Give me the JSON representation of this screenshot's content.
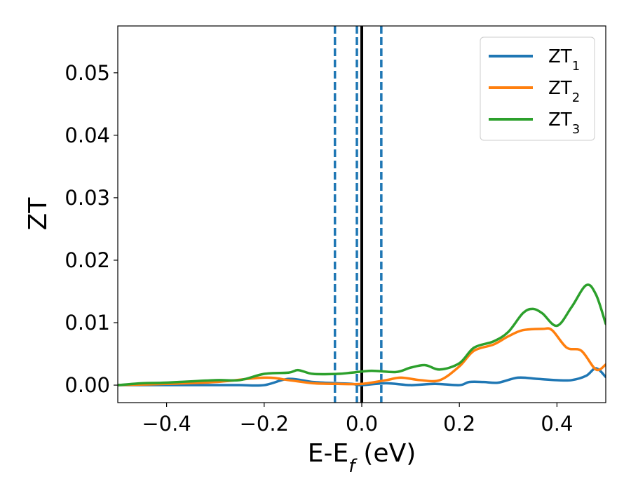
{
  "chart_data": {
    "type": "line",
    "xlabel": "E-E",
    "xlabel_subscript": "f",
    "xlabel_unit": "(eV)",
    "ylabel": "ZT",
    "xlim": [
      -0.5,
      0.5
    ],
    "ylim": [
      -0.0028,
      0.0575
    ],
    "x_ticks": [
      -0.4,
      -0.2,
      0.0,
      0.2,
      0.4
    ],
    "x_tick_labels": [
      "−0.4",
      "−0.2",
      "0.0",
      "0.2",
      "0.4"
    ],
    "y_ticks": [
      0.0,
      0.01,
      0.02,
      0.03,
      0.04,
      0.05
    ],
    "y_tick_labels": [
      "0.00",
      "0.01",
      "0.02",
      "0.03",
      "0.04",
      "0.05"
    ],
    "grid": false,
    "legend_position": "top-right",
    "vertical_lines": [
      {
        "x": -0.055,
        "style": "dashed",
        "color": "#1f77b4"
      },
      {
        "x": -0.01,
        "style": "dashed",
        "color": "#1f77b4"
      },
      {
        "x": 0.0,
        "style": "solid",
        "color": "#000000"
      },
      {
        "x": 0.04,
        "style": "dashed",
        "color": "#1f77b4"
      }
    ],
    "series": [
      {
        "name": "ZT",
        "subscript": "1",
        "color": "#1f77b4",
        "points": [
          [
            -0.5,
            0.0
          ],
          [
            -0.4,
            0.0
          ],
          [
            -0.3,
            0.0
          ],
          [
            -0.25,
            0.0
          ],
          [
            -0.2,
            0.0
          ],
          [
            -0.15,
            0.001
          ],
          [
            -0.1,
            0.0005
          ],
          [
            -0.05,
            0.0003
          ],
          [
            -0.02,
            0.0002
          ],
          [
            0.0,
            0.0
          ],
          [
            0.05,
            0.0003
          ],
          [
            0.1,
            0.0
          ],
          [
            0.15,
            0.0002
          ],
          [
            0.2,
            0.0
          ],
          [
            0.22,
            0.0005
          ],
          [
            0.25,
            0.0005
          ],
          [
            0.28,
            0.0004
          ],
          [
            0.32,
            0.0012
          ],
          [
            0.36,
            0.001
          ],
          [
            0.4,
            0.0008
          ],
          [
            0.43,
            0.0008
          ],
          [
            0.46,
            0.0015
          ],
          [
            0.48,
            0.0027
          ],
          [
            0.5,
            0.0013
          ]
        ]
      },
      {
        "name": "ZT",
        "subscript": "2",
        "color": "#ff7f0e",
        "points": [
          [
            -0.5,
            0.0
          ],
          [
            -0.4,
            0.0002
          ],
          [
            -0.3,
            0.0005
          ],
          [
            -0.2,
            0.0012
          ],
          [
            -0.15,
            0.0008
          ],
          [
            -0.1,
            0.0003
          ],
          [
            -0.05,
            0.0002
          ],
          [
            0.0,
            0.0002
          ],
          [
            0.05,
            0.0008
          ],
          [
            0.08,
            0.0012
          ],
          [
            0.12,
            0.0008
          ],
          [
            0.16,
            0.0008
          ],
          [
            0.2,
            0.003
          ],
          [
            0.23,
            0.0055
          ],
          [
            0.27,
            0.0065
          ],
          [
            0.3,
            0.0078
          ],
          [
            0.33,
            0.0088
          ],
          [
            0.37,
            0.009
          ],
          [
            0.39,
            0.0088
          ],
          [
            0.42,
            0.006
          ],
          [
            0.45,
            0.0055
          ],
          [
            0.48,
            0.0025
          ],
          [
            0.5,
            0.0033
          ]
        ]
      },
      {
        "name": "ZT",
        "subscript": "3",
        "color": "#2ca02c",
        "points": [
          [
            -0.5,
            0.0
          ],
          [
            -0.45,
            0.0003
          ],
          [
            -0.4,
            0.0004
          ],
          [
            -0.3,
            0.0008
          ],
          [
            -0.25,
            0.0008
          ],
          [
            -0.2,
            0.0018
          ],
          [
            -0.15,
            0.002
          ],
          [
            -0.13,
            0.0024
          ],
          [
            -0.1,
            0.0018
          ],
          [
            -0.05,
            0.0018
          ],
          [
            -0.02,
            0.002
          ],
          [
            0.02,
            0.0023
          ],
          [
            0.07,
            0.0021
          ],
          [
            0.1,
            0.0028
          ],
          [
            0.13,
            0.0032
          ],
          [
            0.16,
            0.0025
          ],
          [
            0.2,
            0.0035
          ],
          [
            0.23,
            0.006
          ],
          [
            0.27,
            0.007
          ],
          [
            0.3,
            0.0085
          ],
          [
            0.33,
            0.0115
          ],
          [
            0.35,
            0.0122
          ],
          [
            0.37,
            0.0115
          ],
          [
            0.4,
            0.0095
          ],
          [
            0.43,
            0.0125
          ],
          [
            0.46,
            0.016
          ],
          [
            0.48,
            0.0145
          ],
          [
            0.5,
            0.0098
          ]
        ]
      }
    ]
  }
}
